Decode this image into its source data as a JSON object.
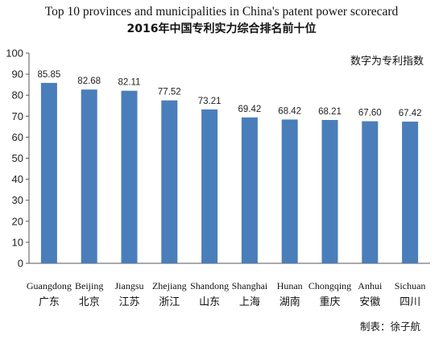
{
  "chart_data": {
    "type": "bar",
    "title": "Top 10 provinces and municipalities in China's patent power scorecard",
    "subtitle": "2016年中国专利实力综合排名前十位",
    "note": "数字为专利指数",
    "credit": "制表：徐子航",
    "categories": [
      "Guangdong",
      "Beijing",
      "Jiangsu",
      "Zhejiang",
      "Shandong",
      "Shanghai",
      "Hunan",
      "Chongqing",
      "Anhui",
      "Sichuan"
    ],
    "categories_cn": [
      "广东",
      "北京",
      "江苏",
      "浙江",
      "山东",
      "上海",
      "湖南",
      "重庆",
      "安徽",
      "四川"
    ],
    "values": [
      85.85,
      82.68,
      82.11,
      77.52,
      73.21,
      69.42,
      68.42,
      68.21,
      67.6,
      67.42
    ],
    "value_labels": [
      "85.85",
      "82.68",
      "82.11",
      "77.52",
      "73.21",
      "69.42",
      "68.42",
      "68.21",
      "67.60",
      "67.42"
    ],
    "ylim": [
      0,
      100
    ],
    "yticks": [
      0,
      10,
      20,
      30,
      40,
      50,
      60,
      70,
      80,
      90,
      100
    ],
    "ytick_labels": [
      "0",
      "10",
      "20",
      "30",
      "40",
      "50",
      "60",
      "70",
      "80",
      "90",
      "100"
    ],
    "bar_color": "#4A7EBB",
    "grid": false
  }
}
